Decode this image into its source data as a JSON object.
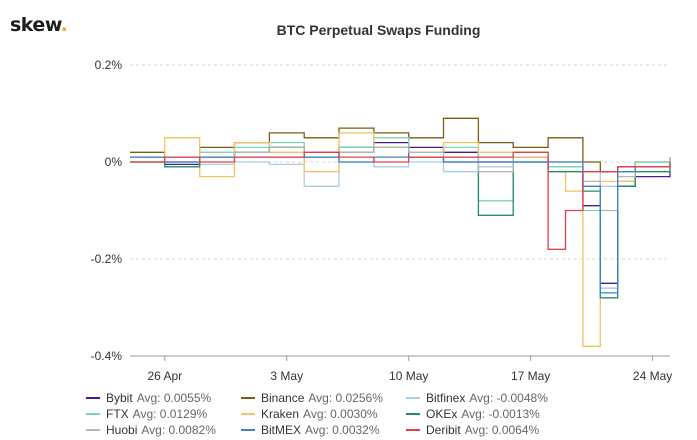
{
  "brand": {
    "name": "skew",
    "dot": "."
  },
  "chart_data": {
    "type": "line",
    "title": "BTC Perpetual Swaps Funding",
    "xlabel": "",
    "ylabel": "",
    "x_range": [
      "2020-04-24",
      "2020-05-25"
    ],
    "x_ticks": [
      {
        "date": "2020-04-26",
        "label": "26 Apr"
      },
      {
        "date": "2020-05-03",
        "label": "3 May"
      },
      {
        "date": "2020-05-10",
        "label": "10 May"
      },
      {
        "date": "2020-05-17",
        "label": "17 May"
      },
      {
        "date": "2020-05-24",
        "label": "24 May"
      }
    ],
    "ylim": [
      -0.4,
      0.2
    ],
    "y_ticks": [
      {
        "value": 0.2,
        "label": "0.2%"
      },
      {
        "value": 0,
        "label": "0%"
      },
      {
        "value": -0.2,
        "label": "-0.2%"
      },
      {
        "value": -0.4,
        "label": "-0.4%"
      }
    ],
    "unit": "%",
    "grid": true,
    "legend_position": "bottom",
    "series": [
      {
        "name": "Bybit",
        "avg_label": "Avg: 0.0055%",
        "color": "#4b1a8e",
        "points": [
          [
            "2020-04-24",
            0.01
          ],
          [
            "2020-04-26",
            -0.005
          ],
          [
            "2020-04-28",
            0.01
          ],
          [
            "2020-04-30",
            0.02
          ],
          [
            "2020-05-02",
            0.03
          ],
          [
            "2020-05-04",
            0.02
          ],
          [
            "2020-05-06",
            0.03
          ],
          [
            "2020-05-08",
            0.04
          ],
          [
            "2020-05-10",
            0.03
          ],
          [
            "2020-05-12",
            0.02
          ],
          [
            "2020-05-14",
            0.0
          ],
          [
            "2020-05-16",
            0.01
          ],
          [
            "2020-05-18",
            -0.01
          ],
          [
            "2020-05-20",
            -0.09
          ],
          [
            "2020-05-21",
            -0.25
          ],
          [
            "2020-05-22",
            -0.05
          ],
          [
            "2020-05-23",
            -0.03
          ],
          [
            "2020-05-25",
            -0.02
          ]
        ]
      },
      {
        "name": "Binance",
        "avg_label": "Avg: 0.0256%",
        "color": "#7a5c13",
        "points": [
          [
            "2020-04-24",
            0.02
          ],
          [
            "2020-04-26",
            0.01
          ],
          [
            "2020-04-28",
            0.03
          ],
          [
            "2020-04-30",
            0.04
          ],
          [
            "2020-05-02",
            0.06
          ],
          [
            "2020-05-04",
            0.05
          ],
          [
            "2020-05-06",
            0.07
          ],
          [
            "2020-05-08",
            0.06
          ],
          [
            "2020-05-10",
            0.05
          ],
          [
            "2020-05-12",
            0.09
          ],
          [
            "2020-05-14",
            0.04
          ],
          [
            "2020-05-16",
            0.03
          ],
          [
            "2020-05-18",
            0.05
          ],
          [
            "2020-05-20",
            0.0
          ],
          [
            "2020-05-21",
            -0.02
          ],
          [
            "2020-05-22",
            -0.01
          ],
          [
            "2020-05-23",
            0.0
          ],
          [
            "2020-05-25",
            0.01
          ]
        ]
      },
      {
        "name": "Bitfinex",
        "avg_label": "Avg: -0.0048%",
        "color": "#a9cde8",
        "points": [
          [
            "2020-04-24",
            0.0
          ],
          [
            "2020-04-26",
            0.0
          ],
          [
            "2020-04-28",
            -0.005
          ],
          [
            "2020-04-30",
            0.0
          ],
          [
            "2020-05-02",
            -0.005
          ],
          [
            "2020-05-04",
            -0.05
          ],
          [
            "2020-05-06",
            0.0
          ],
          [
            "2020-05-08",
            -0.01
          ],
          [
            "2020-05-10",
            0.0
          ],
          [
            "2020-05-12",
            -0.02
          ],
          [
            "2020-05-14",
            -0.01
          ],
          [
            "2020-05-16",
            0.0
          ],
          [
            "2020-05-18",
            -0.01
          ],
          [
            "2020-05-20",
            -0.02
          ],
          [
            "2020-05-21",
            -0.05
          ],
          [
            "2020-05-22",
            -0.02
          ],
          [
            "2020-05-23",
            -0.01
          ],
          [
            "2020-05-25",
            -0.01
          ]
        ]
      },
      {
        "name": "FTX",
        "avg_label": "Avg: 0.0129%",
        "color": "#7fd3b1",
        "points": [
          [
            "2020-04-24",
            0.01
          ],
          [
            "2020-04-26",
            0.0
          ],
          [
            "2020-04-28",
            0.02
          ],
          [
            "2020-04-30",
            0.03
          ],
          [
            "2020-05-02",
            0.04
          ],
          [
            "2020-05-04",
            0.02
          ],
          [
            "2020-05-06",
            0.03
          ],
          [
            "2020-05-08",
            0.05
          ],
          [
            "2020-05-10",
            0.02
          ],
          [
            "2020-05-12",
            0.03
          ],
          [
            "2020-05-14",
            -0.08
          ],
          [
            "2020-05-16",
            0.02
          ],
          [
            "2020-05-18",
            -0.01
          ],
          [
            "2020-05-20",
            -0.1
          ],
          [
            "2020-05-21",
            -0.26
          ],
          [
            "2020-05-22",
            -0.04
          ],
          [
            "2020-05-23",
            0.0
          ],
          [
            "2020-05-25",
            0.01
          ]
        ]
      },
      {
        "name": "Kraken",
        "avg_label": "Avg: 0.0030%",
        "color": "#efc262",
        "points": [
          [
            "2020-04-24",
            0.0
          ],
          [
            "2020-04-26",
            0.05
          ],
          [
            "2020-04-28",
            -0.03
          ],
          [
            "2020-04-30",
            0.04
          ],
          [
            "2020-05-02",
            0.02
          ],
          [
            "2020-05-04",
            -0.02
          ],
          [
            "2020-05-06",
            0.06
          ],
          [
            "2020-05-08",
            0.03
          ],
          [
            "2020-05-10",
            0.01
          ],
          [
            "2020-05-12",
            0.04
          ],
          [
            "2020-05-14",
            0.02
          ],
          [
            "2020-05-16",
            0.01
          ],
          [
            "2020-05-18",
            -0.02
          ],
          [
            "2020-05-19",
            -0.06
          ],
          [
            "2020-05-20",
            -0.38
          ],
          [
            "2020-05-21",
            -0.04
          ],
          [
            "2020-05-23",
            -0.02
          ],
          [
            "2020-05-25",
            0.0
          ]
        ]
      },
      {
        "name": "OKEx",
        "avg_label": "Avg: -0.0013%",
        "color": "#1f8f66",
        "points": [
          [
            "2020-04-24",
            0.0
          ],
          [
            "2020-04-26",
            -0.01
          ],
          [
            "2020-04-28",
            0.01
          ],
          [
            "2020-04-30",
            0.02
          ],
          [
            "2020-05-02",
            0.03
          ],
          [
            "2020-05-04",
            0.01
          ],
          [
            "2020-05-06",
            0.02
          ],
          [
            "2020-05-08",
            0.03
          ],
          [
            "2020-05-10",
            0.01
          ],
          [
            "2020-05-12",
            0.0
          ],
          [
            "2020-05-14",
            -0.11
          ],
          [
            "2020-05-16",
            0.0
          ],
          [
            "2020-05-18",
            -0.02
          ],
          [
            "2020-05-20",
            -0.06
          ],
          [
            "2020-05-21",
            -0.28
          ],
          [
            "2020-05-22",
            -0.05
          ],
          [
            "2020-05-23",
            -0.02
          ],
          [
            "2020-05-25",
            -0.01
          ]
        ]
      },
      {
        "name": "Huobi",
        "avg_label": "Avg: 0.0082%",
        "color": "#b5b5b5",
        "points": [
          [
            "2020-04-24",
            0.01
          ],
          [
            "2020-04-26",
            0.0
          ],
          [
            "2020-04-28",
            0.01
          ],
          [
            "2020-04-30",
            0.02
          ],
          [
            "2020-05-02",
            0.03
          ],
          [
            "2020-05-04",
            0.02
          ],
          [
            "2020-05-06",
            0.02
          ],
          [
            "2020-05-08",
            0.03
          ],
          [
            "2020-05-10",
            0.02
          ],
          [
            "2020-05-12",
            0.01
          ],
          [
            "2020-05-14",
            -0.02
          ],
          [
            "2020-05-16",
            0.0
          ],
          [
            "2020-05-18",
            0.0
          ],
          [
            "2020-05-20",
            -0.04
          ],
          [
            "2020-05-21",
            -0.1
          ],
          [
            "2020-05-22",
            -0.03
          ],
          [
            "2020-05-23",
            -0.01
          ],
          [
            "2020-05-25",
            0.0
          ]
        ]
      },
      {
        "name": "BitMEX",
        "avg_label": "Avg: 0.0032%",
        "color": "#3f7fd0",
        "points": [
          [
            "2020-04-24",
            0.01
          ],
          [
            "2020-04-26",
            0.0
          ],
          [
            "2020-04-28",
            0.01
          ],
          [
            "2020-04-30",
            0.01
          ],
          [
            "2020-05-02",
            0.01
          ],
          [
            "2020-05-04",
            0.01
          ],
          [
            "2020-05-06",
            0.0
          ],
          [
            "2020-05-08",
            0.01
          ],
          [
            "2020-05-10",
            0.01
          ],
          [
            "2020-05-12",
            0.0
          ],
          [
            "2020-05-14",
            0.0
          ],
          [
            "2020-05-16",
            0.0
          ],
          [
            "2020-05-18",
            0.0
          ],
          [
            "2020-05-20",
            -0.05
          ],
          [
            "2020-05-21",
            -0.27
          ],
          [
            "2020-05-22",
            -0.02
          ],
          [
            "2020-05-23",
            -0.01
          ],
          [
            "2020-05-25",
            0.0
          ]
        ]
      },
      {
        "name": "Deribit",
        "avg_label": "Avg: 0.0064%",
        "color": "#e0404a",
        "points": [
          [
            "2020-04-24",
            0.0
          ],
          [
            "2020-04-26",
            0.01
          ],
          [
            "2020-04-28",
            0.0
          ],
          [
            "2020-04-30",
            0.01
          ],
          [
            "2020-05-02",
            0.01
          ],
          [
            "2020-05-04",
            0.02
          ],
          [
            "2020-05-06",
            0.01
          ],
          [
            "2020-05-08",
            0.0
          ],
          [
            "2020-05-10",
            0.01
          ],
          [
            "2020-05-12",
            0.01
          ],
          [
            "2020-05-14",
            0.01
          ],
          [
            "2020-05-16",
            0.02
          ],
          [
            "2020-05-18",
            0.0
          ],
          [
            "2020-05-18",
            -0.18
          ],
          [
            "2020-05-19",
            -0.1
          ],
          [
            "2020-05-20",
            -0.02
          ],
          [
            "2020-05-22",
            -0.01
          ],
          [
            "2020-05-25",
            0.0
          ]
        ]
      }
    ]
  }
}
